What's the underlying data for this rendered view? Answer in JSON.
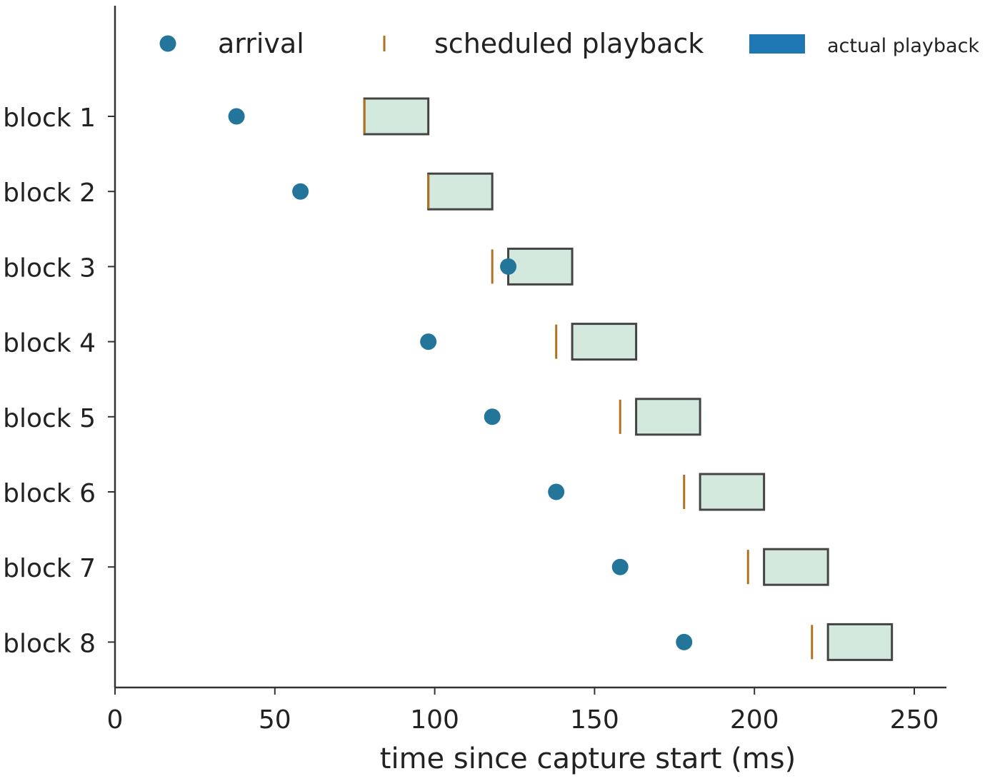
{
  "chart_data": {
    "type": "gantt",
    "xlabel": "time since capture start (ms)",
    "ylabel": "",
    "xlim": [
      0,
      260
    ],
    "xticks": [
      "0",
      "50",
      "100",
      "150",
      "200",
      "250"
    ],
    "grid": false,
    "legend_position": "top",
    "categories": [
      "block 1",
      "block 2",
      "block 3",
      "block 4",
      "block 5",
      "block 6",
      "block 7",
      "block 8"
    ],
    "series": [
      {
        "name": "arrival",
        "marker": "circle",
        "values": [
          38,
          58,
          123,
          98,
          118,
          138,
          158,
          178
        ]
      },
      {
        "name": "scheduled playback",
        "marker": "vertical-tick",
        "values": [
          78,
          98,
          118,
          138,
          158,
          178,
          198,
          218
        ]
      },
      {
        "name": "actual playback",
        "marker": "bar-range",
        "ranges": [
          [
            78,
            98
          ],
          [
            98,
            118
          ],
          [
            123,
            143
          ],
          [
            143,
            163
          ],
          [
            163,
            183
          ],
          [
            183,
            203
          ],
          [
            203,
            223
          ],
          [
            223,
            243
          ]
        ]
      }
    ],
    "colors": {
      "arrival": "#23759a",
      "scheduled": "#b07222",
      "bar_fill": "#d3e9dd",
      "bar_edge": "#444444",
      "legend_bar": "#1f78b4",
      "axis": "#333333"
    }
  }
}
